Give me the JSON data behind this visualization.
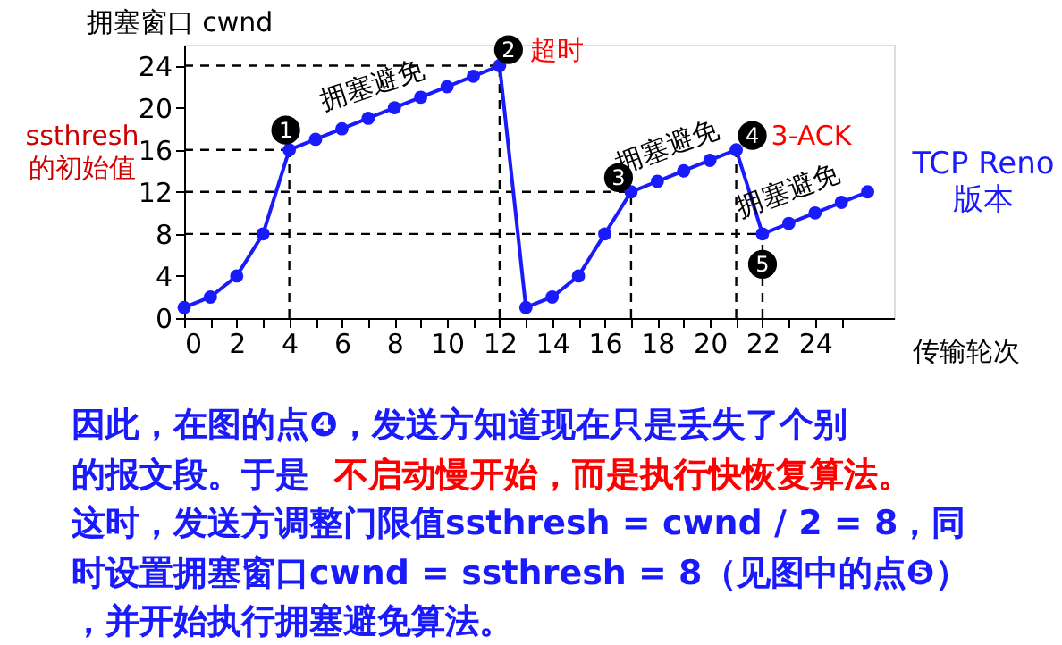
{
  "chart_data": {
    "type": "line",
    "ylabel": "拥塞窗口 cwnd",
    "xlabel": "传输轮次",
    "x": [
      0,
      1,
      2,
      3,
      4,
      5,
      6,
      7,
      8,
      9,
      10,
      11,
      12,
      13,
      14,
      15,
      16,
      17,
      18,
      19,
      20,
      21,
      22,
      23,
      24,
      25,
      26
    ],
    "series": [
      {
        "color": "#1a1aff",
        "values": [
          1,
          2,
          4,
          8,
          16,
          17,
          18,
          19,
          20,
          21,
          22,
          23,
          24,
          1,
          2,
          4,
          8,
          12,
          13,
          14,
          15,
          16,
          8,
          9,
          10,
          11,
          12
        ]
      }
    ],
    "marker": "circle",
    "line_style": "solid",
    "grid": false,
    "xlim": [
      0,
      27
    ],
    "ylim": [
      0,
      26
    ],
    "xticks": [
      0,
      {
        "value": 1,
        "label": null
      },
      2,
      {
        "value": 3,
        "label": null
      },
      4,
      {
        "value": 5,
        "label": null
      },
      6,
      {
        "value": 7,
        "label": null
      },
      8,
      {
        "value": 9,
        "label": null
      },
      10,
      {
        "value": 11,
        "label": null
      },
      12,
      {
        "value": 13,
        "label": null
      },
      14,
      {
        "value": 15,
        "label": null
      },
      16,
      {
        "value": 17,
        "label": null
      },
      18,
      {
        "value": 19,
        "label": null
      },
      20,
      {
        "value": 21,
        "label": null
      },
      22,
      {
        "value": 23,
        "label": null
      },
      24,
      {
        "value": 25,
        "label": null
      }
    ],
    "yticks": [
      0,
      4,
      8,
      12,
      16,
      20,
      24
    ],
    "ref_lines": [
      {
        "axis": "y",
        "value": 24,
        "line_style": "dashed",
        "color": "#000000"
      },
      {
        "axis": "y",
        "value": 16,
        "line_style": "dashed",
        "color": "#000000"
      },
      {
        "axis": "y",
        "value": 12,
        "line_style": "dashed",
        "color": "#000000"
      },
      {
        "axis": "y",
        "value": 8,
        "line_style": "dashed",
        "color": "#000000"
      },
      {
        "axis": "x",
        "value": 4,
        "line_style": "dashed",
        "color": "#000000"
      },
      {
        "axis": "x",
        "value": 12,
        "line_style": "dashed",
        "color": "#000000"
      },
      {
        "axis": "x",
        "value": 17,
        "line_style": "dashed",
        "color": "#000000"
      },
      {
        "axis": "x",
        "value": 21,
        "line_style": "dashed",
        "color": "#000000"
      },
      {
        "axis": "x",
        "value": 22,
        "line_style": "dashed",
        "color": "#000000"
      }
    ],
    "annotations": [
      {
        "text": "拥塞避免",
        "x": 8,
        "y": 20
      },
      {
        "text": "拥塞避免",
        "x": 19,
        "y": 14
      },
      {
        "text": "拥塞避免",
        "x": 24,
        "y": 10
      },
      {
        "text": "1",
        "x": 4,
        "y": 16
      },
      {
        "text": "2",
        "x": 12,
        "y": 24
      },
      {
        "text": "3",
        "x": 17,
        "y": 12
      },
      {
        "text": "4",
        "x": 21,
        "y": 16
      },
      {
        "text": "5",
        "x": 22,
        "y": 8
      },
      {
        "text": "超时",
        "x": 12,
        "y": 24
      },
      {
        "text": "3-ACK",
        "x": 21,
        "y": 16
      },
      {
        "text": "ssthresh\n的初始值",
        "x": 0,
        "y": 16
      },
      "TCP Reno\n版本",
      "因此，在图的点❹，发送方知道现在只是丢失了个别",
      "的报文段。于是",
      "不启动慢开始，而是执行快恢复算法。",
      "这时，发送方调整门限值ssthresh = cwnd / 2 = 8，同",
      "时设置拥塞窗口cwnd = ssthresh = 8（见图中的点❺）",
      "，并开始执行拥塞避免算法。"
    ]
  }
}
